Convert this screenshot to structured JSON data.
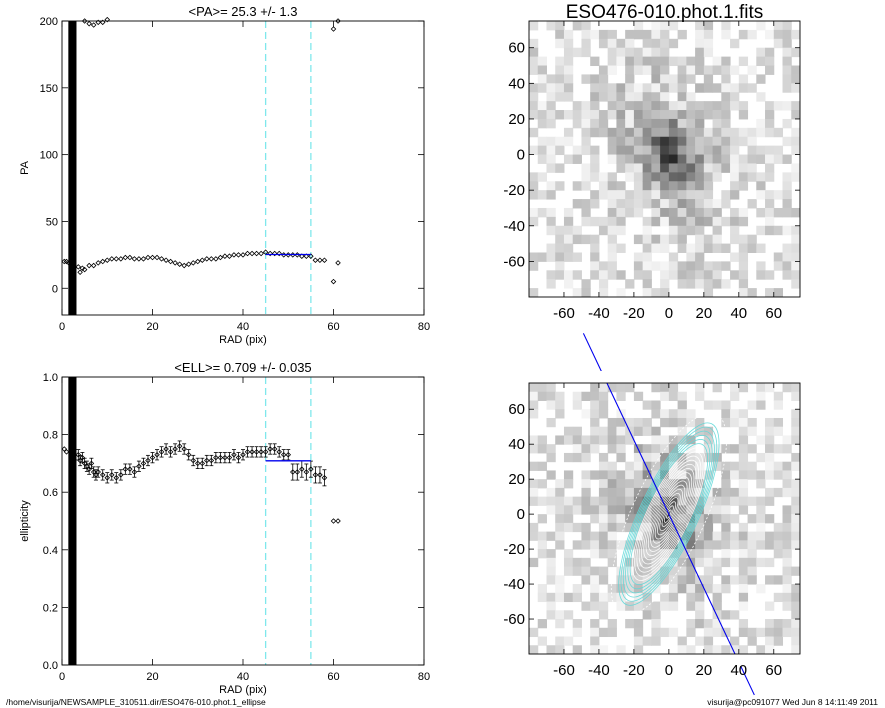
{
  "colors": {
    "fit": "#0000ee",
    "bound": "#7fe8ec",
    "axis": "#000000",
    "iso": "#ffffff",
    "iso_cyan": "#5ed8d8"
  },
  "chart_data": [
    {
      "type": "scatter",
      "id": "pa",
      "title": "<PA>=  25.3 +/-   1.3",
      "xlabel": "RAD (pix)",
      "ylabel": "PA",
      "xlim": [
        0,
        80
      ],
      "ylim": [
        -20,
        200
      ],
      "xticks": [
        0,
        20,
        40,
        60,
        80
      ],
      "yticks": [
        0,
        50,
        100,
        150,
        200
      ],
      "band": [
        1.4,
        3.2
      ],
      "vlines": [
        45,
        55
      ],
      "fit": {
        "x": [
          45,
          55
        ],
        "y": [
          25.3,
          25.3
        ]
      },
      "series": [
        {
          "name": "PA",
          "points": [
            [
              3.6,
              16
            ],
            [
              4.0,
              12
            ],
            [
              4.5,
              15
            ],
            [
              5.0,
              14
            ],
            [
              6.0,
              17
            ],
            [
              7.0,
              17
            ],
            [
              8.0,
              19
            ],
            [
              9.0,
              20
            ],
            [
              10,
              21
            ],
            [
              11,
              22
            ],
            [
              12,
              22
            ],
            [
              13,
              22
            ],
            [
              14,
              23
            ],
            [
              15,
              23
            ],
            [
              16,
              22
            ],
            [
              17,
              22
            ],
            [
              18,
              22
            ],
            [
              19,
              23
            ],
            [
              20,
              23
            ],
            [
              21,
              23
            ],
            [
              22,
              22
            ],
            [
              23,
              21
            ],
            [
              24,
              20
            ],
            [
              25,
              19
            ],
            [
              26,
              18
            ],
            [
              27,
              17
            ],
            [
              28,
              18
            ],
            [
              29,
              19
            ],
            [
              30,
              20
            ],
            [
              31,
              21
            ],
            [
              32,
              22
            ],
            [
              33,
              22
            ],
            [
              34,
              22
            ],
            [
              35,
              23
            ],
            [
              36,
              24
            ],
            [
              37,
              24
            ],
            [
              38,
              25
            ],
            [
              39,
              25
            ],
            [
              40,
              25
            ],
            [
              41,
              26
            ],
            [
              42,
              26
            ],
            [
              43,
              26
            ],
            [
              44,
              26
            ],
            [
              45,
              27
            ],
            [
              46,
              26
            ],
            [
              47,
              26
            ],
            [
              48,
              26
            ],
            [
              49,
              25
            ],
            [
              50,
              25
            ],
            [
              51,
              25
            ],
            [
              52,
              25
            ],
            [
              53,
              24
            ],
            [
              54,
              24
            ],
            [
              55,
              24
            ],
            [
              56,
              21
            ],
            [
              57,
              21
            ],
            [
              58,
              21
            ],
            [
              60,
              5
            ],
            [
              61,
              19
            ],
            [
              0.5,
              20
            ],
            [
              1.0,
              20
            ],
            [
              1.5,
              19
            ],
            [
              4.0,
              202
            ],
            [
              5.0,
              200
            ],
            [
              6.0,
              198
            ],
            [
              7.0,
              197
            ],
            [
              8.0,
              199
            ],
            [
              9.0,
              199
            ],
            [
              10,
              201
            ],
            [
              60,
              194
            ],
            [
              61,
              200
            ]
          ]
        }
      ]
    },
    {
      "type": "scatter",
      "id": "ell",
      "title": "<ELL>= 0.709 +/-  0.035",
      "xlabel": "RAD (pix)",
      "ylabel": "ellipticity",
      "xlim": [
        0,
        80
      ],
      "ylim": [
        0,
        1
      ],
      "xticks": [
        0,
        20,
        40,
        60,
        80
      ],
      "yticks": [
        0.0,
        0.2,
        0.4,
        0.6,
        0.8,
        1.0
      ],
      "band": [
        1.4,
        3.2
      ],
      "vlines": [
        45,
        55
      ],
      "fit": {
        "x": [
          45,
          55
        ],
        "y": [
          0.709,
          0.709
        ]
      },
      "series": [
        {
          "name": "ELL",
          "points": [
            [
              0.5,
              0.75
            ],
            [
              1.0,
              0.74
            ],
            [
              3.6,
              0.73
            ],
            [
              4.0,
              0.71
            ],
            [
              4.5,
              0.72
            ],
            [
              5.0,
              0.7
            ],
            [
              5.5,
              0.69
            ],
            [
              6.0,
              0.68
            ],
            [
              6.5,
              0.7
            ],
            [
              7.0,
              0.67
            ],
            [
              7.5,
              0.66
            ],
            [
              8.0,
              0.67
            ],
            [
              9.0,
              0.66
            ],
            [
              10,
              0.65
            ],
            [
              11,
              0.66
            ],
            [
              12,
              0.65
            ],
            [
              13,
              0.66
            ],
            [
              14,
              0.68
            ],
            [
              15,
              0.68
            ],
            [
              16,
              0.67
            ],
            [
              17,
              0.69
            ],
            [
              18,
              0.7
            ],
            [
              19,
              0.71
            ],
            [
              20,
              0.72
            ],
            [
              21,
              0.73
            ],
            [
              22,
              0.74
            ],
            [
              23,
              0.75
            ],
            [
              24,
              0.74
            ],
            [
              25,
              0.75
            ],
            [
              26,
              0.76
            ],
            [
              27,
              0.75
            ],
            [
              28,
              0.73
            ],
            [
              29,
              0.71
            ],
            [
              30,
              0.7
            ],
            [
              31,
              0.7
            ],
            [
              32,
              0.71
            ],
            [
              33,
              0.71
            ],
            [
              34,
              0.72
            ],
            [
              35,
              0.72
            ],
            [
              36,
              0.72
            ],
            [
              37,
              0.72
            ],
            [
              38,
              0.73
            ],
            [
              39,
              0.72
            ],
            [
              40,
              0.73
            ],
            [
              41,
              0.74
            ],
            [
              42,
              0.74
            ],
            [
              43,
              0.74
            ],
            [
              44,
              0.74
            ],
            [
              45,
              0.74
            ],
            [
              46,
              0.75
            ],
            [
              47,
              0.75
            ],
            [
              48,
              0.74
            ],
            [
              49,
              0.73
            ],
            [
              50,
              0.73
            ],
            [
              51,
              0.67
            ],
            [
              52,
              0.67
            ],
            [
              53,
              0.68
            ],
            [
              54,
              0.67
            ],
            [
              55,
              0.68
            ],
            [
              56,
              0.66
            ],
            [
              57,
              0.66
            ],
            [
              58,
              0.65
            ],
            [
              60,
              0.5
            ],
            [
              61,
              0.5
            ]
          ]
        }
      ]
    },
    {
      "type": "heatmap",
      "id": "img_top",
      "title": "ESO476-010.phot.1.fits",
      "xlim": [
        -80,
        75
      ],
      "ylim": [
        -80,
        75
      ],
      "xticks": [
        -60,
        -40,
        -20,
        0,
        20,
        40,
        60
      ],
      "yticks": [
        -60,
        -40,
        -20,
        0,
        20,
        40,
        60
      ],
      "galaxy": {
        "center": [
          0,
          0
        ],
        "pa_deg": 25.3,
        "ell": 0.709
      }
    },
    {
      "type": "heatmap",
      "id": "img_bottom",
      "title": "",
      "xlim": [
        -80,
        75
      ],
      "ylim": [
        -80,
        75
      ],
      "xticks": [
        -60,
        -40,
        -20,
        0,
        20,
        40,
        60
      ],
      "yticks": [
        -60,
        -40,
        -20,
        0,
        20,
        40,
        60
      ],
      "galaxy": {
        "center": [
          0,
          0
        ],
        "pa_deg": 25.3,
        "ell": 0.709
      },
      "major_axis_line": true
    }
  ],
  "footer": {
    "left": "/home/visurija/NEWSAMPLE_310511.dir/ESO476-010.phot.1_ellipse",
    "right": "visurija@pc091077  Wed Jun  8 14:11:49 2011"
  }
}
